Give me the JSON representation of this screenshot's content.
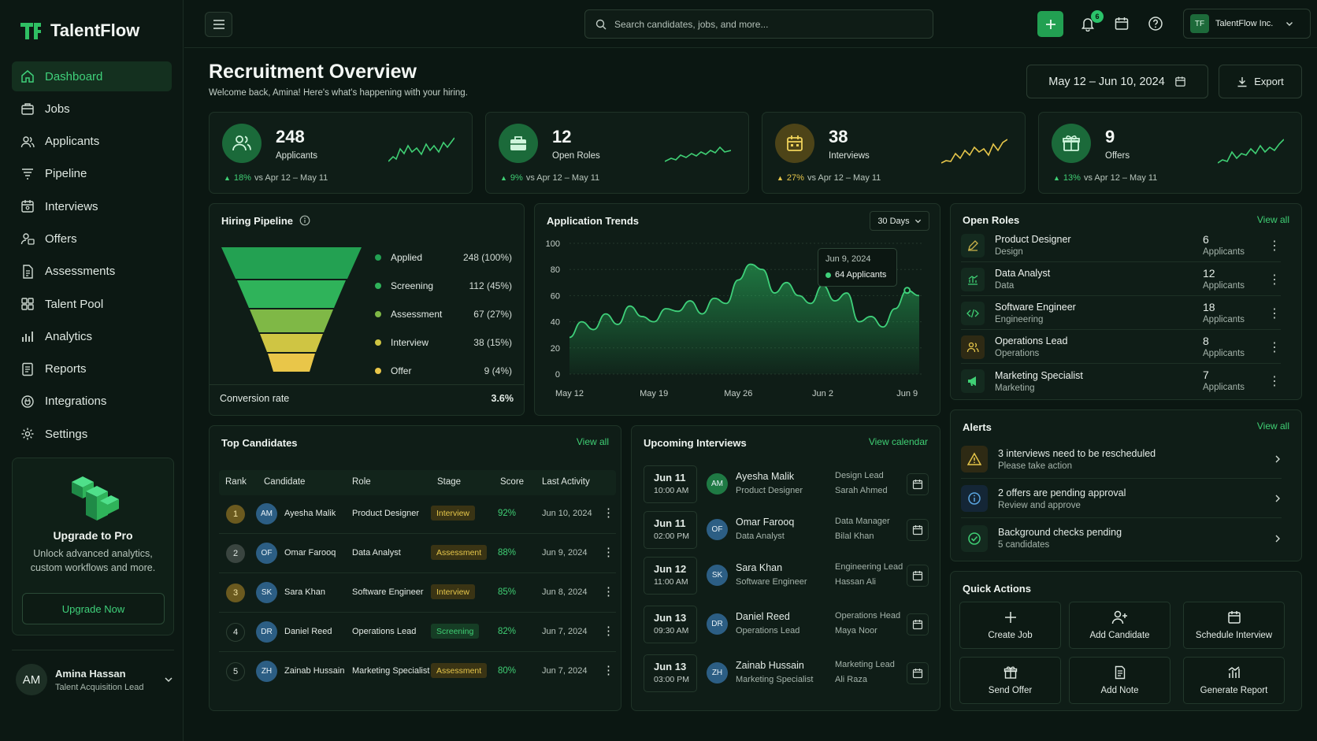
{
  "brand": {
    "name": "TalentFlow"
  },
  "nav": [
    {
      "label": "Dashboard"
    },
    {
      "label": "Jobs"
    },
    {
      "label": "Applicants"
    },
    {
      "label": "Pipeline"
    },
    {
      "label": "Interviews"
    },
    {
      "label": "Offers"
    },
    {
      "label": "Assessments"
    },
    {
      "label": "Talent Pool"
    },
    {
      "label": "Analytics"
    },
    {
      "label": "Reports"
    },
    {
      "label": "Integrations"
    },
    {
      "label": "Settings"
    }
  ],
  "upgrade": {
    "title": "Upgrade to Pro",
    "text": "Unlock advanced analytics, custom workflows and more.",
    "button": "Upgrade Now"
  },
  "user": {
    "initials": "AM",
    "name": "Amina Hassan",
    "role": "Talent Acquisition Lead"
  },
  "topbar": {
    "search_placeholder": "Search candidates, jobs, and more...",
    "notif_count": "6",
    "company_initials": "TF",
    "company": "TalentFlow Inc."
  },
  "page": {
    "title": "Recruitment Overview",
    "subtitle": "Welcome back, Amina! Here's what's happening with your hiring.",
    "date_range": "May 12 – Jun 10, 2024",
    "export": "Export"
  },
  "stats": [
    {
      "value": "248",
      "label": "Applicants",
      "change": "18%",
      "period": "vs Apr 12 – May 11"
    },
    {
      "value": "12",
      "label": "Open Roles",
      "change": "9%",
      "period": "vs Apr 12 – May 11"
    },
    {
      "value": "38",
      "label": "Interviews",
      "change": "27%",
      "period": "vs Apr 12 – May 11"
    },
    {
      "value": "9",
      "label": "Offers",
      "change": "13%",
      "period": "vs Apr 12 – May 11"
    }
  ],
  "pipeline": {
    "title": "Hiring Pipeline",
    "stages": [
      {
        "name": "Applied",
        "value": "248 (100%)",
        "color": "#22a052"
      },
      {
        "name": "Screening",
        "value": "112 (45%)",
        "color": "#2fb35a"
      },
      {
        "name": "Assessment",
        "value": "67 (27%)",
        "color": "#7fb846"
      },
      {
        "name": "Interview",
        "value": "38 (15%)",
        "color": "#cfc543"
      },
      {
        "name": "Offer",
        "value": "9 (4%)",
        "color": "#e9c649"
      }
    ],
    "conversion_label": "Conversion rate",
    "conversion_value": "3.6%"
  },
  "trends": {
    "title": "Application Trends",
    "range": "30 Days",
    "tooltip_date": "Jun 9, 2024",
    "tooltip_value": "64 Applicants"
  },
  "chart_data": {
    "type": "area",
    "title": "Application Trends",
    "x_ticks": [
      "May 12",
      "May 19",
      "May 26",
      "Jun 2",
      "Jun 9"
    ],
    "y_ticks": [
      "100",
      "80",
      "60",
      "40",
      "20",
      "0"
    ],
    "ylim": [
      0,
      100
    ],
    "grid": true,
    "x": [
      "May 12",
      "May 13",
      "May 14",
      "May 15",
      "May 16",
      "May 17",
      "May 18",
      "May 19",
      "May 20",
      "May 21",
      "May 22",
      "May 23",
      "May 24",
      "May 25",
      "May 26",
      "May 27",
      "May 28",
      "May 29",
      "May 30",
      "May 31",
      "Jun 1",
      "Jun 2",
      "Jun 3",
      "Jun 4",
      "Jun 5",
      "Jun 6",
      "Jun 7",
      "Jun 8",
      "Jun 9",
      "Jun 10"
    ],
    "series": [
      {
        "values": [
          28,
          40,
          34,
          46,
          38,
          52,
          44,
          40,
          50,
          48,
          56,
          46,
          58,
          54,
          72,
          84,
          80,
          62,
          70,
          60,
          54,
          68,
          56,
          62,
          40,
          44,
          36,
          50,
          64,
          60
        ]
      }
    ]
  },
  "open_roles": {
    "title": "Open Roles",
    "view_all": "View all",
    "items": [
      {
        "name": "Product Designer",
        "dept": "Design",
        "count": "6",
        "unit": "Applicants"
      },
      {
        "name": "Data Analyst",
        "dept": "Data",
        "count": "12",
        "unit": "Applicants"
      },
      {
        "name": "Software Engineer",
        "dept": "Engineering",
        "count": "18",
        "unit": "Applicants"
      },
      {
        "name": "Operations Lead",
        "dept": "Operations",
        "count": "8",
        "unit": "Applicants"
      },
      {
        "name": "Marketing Specialist",
        "dept": "Marketing",
        "count": "7",
        "unit": "Applicants"
      }
    ]
  },
  "alerts": {
    "title": "Alerts",
    "view_all": "View all",
    "items": [
      {
        "title": "3 interviews need to be rescheduled",
        "sub": "Please take action"
      },
      {
        "title": "2 offers are pending approval",
        "sub": "Review and approve"
      },
      {
        "title": "Background checks pending",
        "sub": "5 candidates"
      }
    ]
  },
  "quick_actions": {
    "title": "Quick Actions",
    "items": [
      {
        "label": "Create Job"
      },
      {
        "label": "Add Candidate"
      },
      {
        "label": "Schedule Interview"
      },
      {
        "label": "Send Offer"
      },
      {
        "label": "Add Note"
      },
      {
        "label": "Generate Report"
      }
    ]
  },
  "top_candidates": {
    "title": "Top Candidates",
    "view_all": "View all",
    "columns": [
      "Rank",
      "Candidate",
      "Role",
      "Stage",
      "Score",
      "Last Activity"
    ],
    "rows": [
      {
        "rank": "1",
        "initials": "AM",
        "name": "Ayesha Malik",
        "role": "Product Designer",
        "stage": "Interview",
        "score": "92%",
        "date": "Jun 10, 2024"
      },
      {
        "rank": "2",
        "initials": "OF",
        "name": "Omar Farooq",
        "role": "Data Analyst",
        "stage": "Assessment",
        "score": "88%",
        "date": "Jun 9, 2024"
      },
      {
        "rank": "3",
        "initials": "SK",
        "name": "Sara Khan",
        "role": "Software Engineer",
        "stage": "Interview",
        "score": "85%",
        "date": "Jun 8, 2024"
      },
      {
        "rank": "4",
        "initials": "DR",
        "name": "Daniel Reed",
        "role": "Operations Lead",
        "stage": "Screening",
        "score": "82%",
        "date": "Jun 7, 2024"
      },
      {
        "rank": "5",
        "initials": "ZH",
        "name": "Zainab Hussain",
        "role": "Marketing Specialist",
        "stage": "Assessment",
        "score": "80%",
        "date": "Jun 7, 2024"
      }
    ]
  },
  "interviews": {
    "title": "Upcoming Interviews",
    "view_calendar": "View calendar",
    "items": [
      {
        "date": "Jun 11",
        "time": "10:00 AM",
        "initials": "AM",
        "name": "Ayesha Malik",
        "role": "Product Designer",
        "lead_title": "Design Lead",
        "lead": "Sarah Ahmed"
      },
      {
        "date": "Jun 11",
        "time": "02:00 PM",
        "initials": "OF",
        "name": "Omar Farooq",
        "role": "Data Analyst",
        "lead_title": "Data Manager",
        "lead": "Bilal Khan"
      },
      {
        "date": "Jun 12",
        "time": "11:00 AM",
        "initials": "SK",
        "name": "Sara Khan",
        "role": "Software Engineer",
        "lead_title": "Engineering Lead",
        "lead": "Hassan Ali"
      },
      {
        "date": "Jun 13",
        "time": "09:30 AM",
        "initials": "DR",
        "name": "Daniel Reed",
        "role": "Operations Lead",
        "lead_title": "Operations Head",
        "lead": "Maya Noor"
      },
      {
        "date": "Jun 13",
        "time": "03:00 PM",
        "initials": "ZH",
        "name": "Zainab Hussain",
        "role": "Marketing Specialist",
        "lead_title": "Marketing Lead",
        "lead": "Ali Raza"
      }
    ]
  }
}
